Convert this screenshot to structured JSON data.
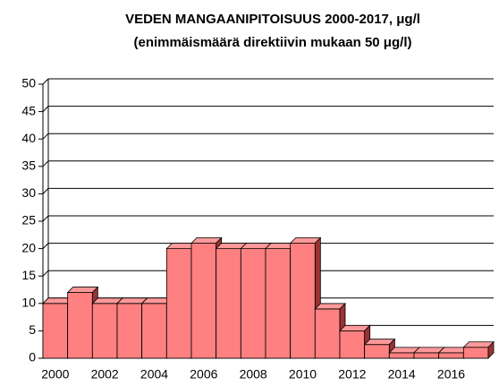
{
  "chart_data": {
    "type": "bar3d",
    "title": "VEDEN MANGAANIPITOISUUS 2000-2017, μg/l",
    "subtitle": "(enimmäismäärä direktiivin mukaan 50 μg/l)",
    "categories": [
      "2000",
      null,
      "2002",
      null,
      "2004",
      null,
      "2006",
      null,
      "2008",
      null,
      "2010",
      null,
      "2012",
      null,
      "2014",
      null,
      "2016",
      null
    ],
    "values": [
      10,
      12,
      10,
      10,
      10,
      20,
      21,
      20,
      20,
      20,
      21,
      9,
      5,
      2.5,
      1,
      1,
      1,
      2
    ],
    "color": "#ff8080",
    "ylim": [
      0,
      50
    ],
    "yticks": [
      0,
      5,
      10,
      15,
      20,
      25,
      30,
      35,
      40,
      45,
      50
    ],
    "grid": true
  }
}
